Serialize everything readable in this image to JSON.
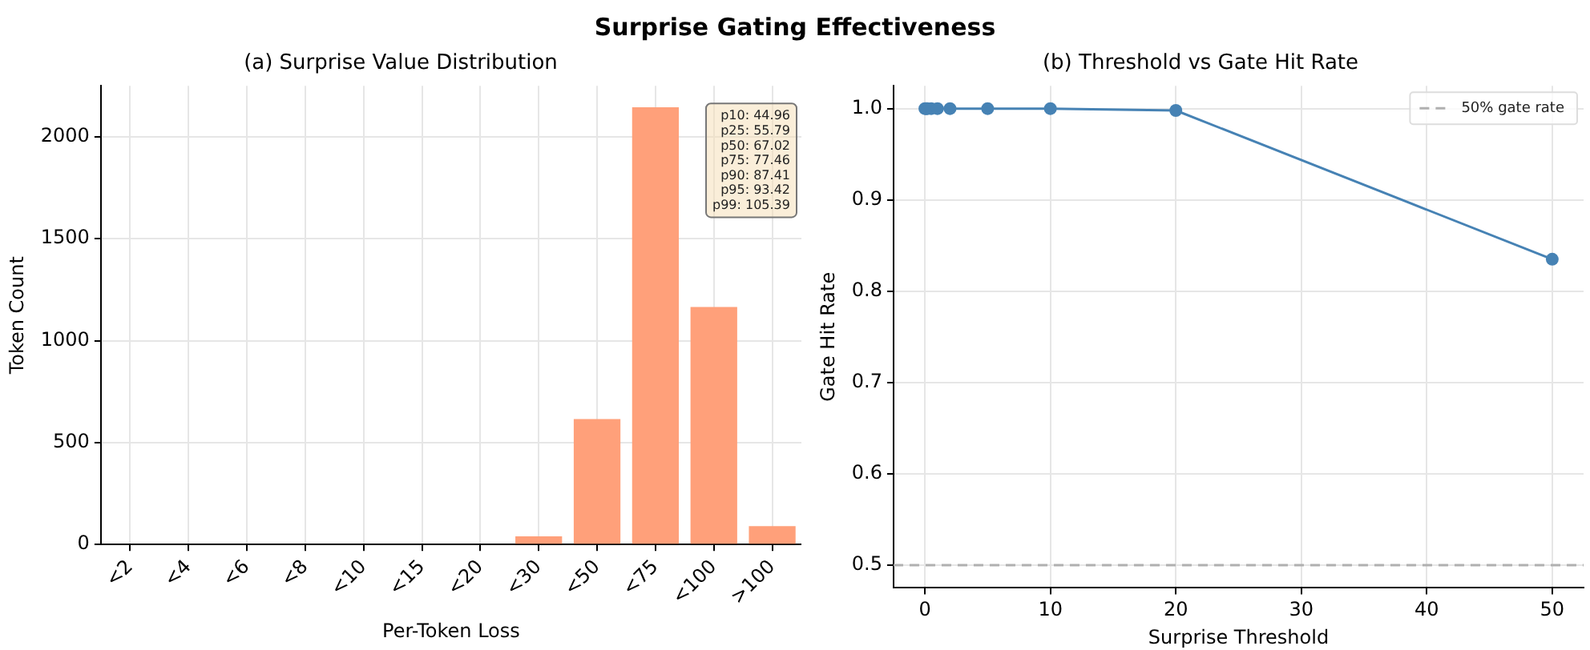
{
  "chart_data": [
    {
      "type": "bar",
      "title": "Surprise Gating Effectiveness",
      "subtitle": "(a) Surprise Value Distribution",
      "xlabel": "Per-Token Loss",
      "ylabel": "Token Count",
      "categories": [
        "<2",
        "<4",
        "<6",
        "<8",
        "<10",
        "<15",
        "<20",
        "<30",
        "<50",
        "<75",
        "<100",
        ">100"
      ],
      "series": [
        {
          "color": "#ffa07a",
          "values": [
            0,
            0,
            0,
            0,
            0,
            0,
            0,
            40,
            615,
            2145,
            1165,
            90
          ]
        }
      ],
      "ylim": [
        0,
        2250
      ],
      "yticks": [
        0,
        500,
        1000,
        1500,
        2000
      ],
      "grid": true,
      "legend": false,
      "annotations": [
        "p10: 44.96\np25: 55.79\np50: 67.02\np75: 77.46\np90: 87.41\np95: 93.42\np99: 105.39"
      ]
    },
    {
      "type": "line",
      "title": "(b) Threshold vs Gate Hit Rate",
      "xlabel": "Surprise Threshold",
      "ylabel": "Gate Hit Rate",
      "series": [
        {
          "color": "#4682b4",
          "x": [
            0,
            0.1,
            0.2,
            0.5,
            1,
            2,
            5,
            10,
            20,
            50
          ],
          "values": [
            1.0,
            1.0,
            1.0,
            1.0,
            1.0,
            1.0,
            1.0,
            1.0,
            0.998,
            0.835
          ]
        }
      ],
      "xlim": [
        -2.5,
        52.5
      ],
      "xticks": [
        0,
        10,
        20,
        30,
        40,
        50
      ],
      "ylim": [
        0.475,
        1.025
      ],
      "yticks": [
        {
          "value": 0.5,
          "label": "0.5"
        },
        {
          "value": 0.6,
          "label": "0.6"
        },
        {
          "value": 0.7,
          "label": "0.7"
        },
        {
          "value": 0.8,
          "label": "0.8"
        },
        {
          "value": 0.9,
          "label": "0.9"
        },
        {
          "value": 1.0,
          "label": "1.0"
        }
      ],
      "ref_lines": [
        {
          "axis": "y",
          "value": 0.5,
          "label": "50% gate rate",
          "color": "#b0b0b0",
          "line_style": "dashed"
        }
      ],
      "marker": "circle",
      "line_style": "solid",
      "grid": true,
      "legend": "top right"
    }
  ]
}
